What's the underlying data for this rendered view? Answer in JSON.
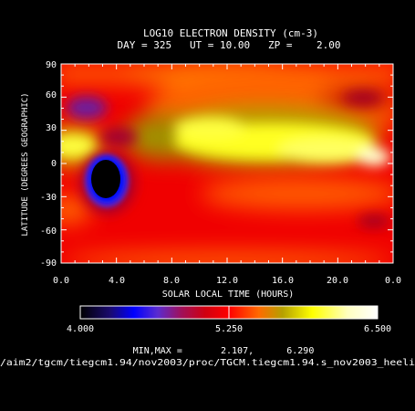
{
  "chart_data": {
    "type": "heatmap",
    "title": "LOG10 ELECTRON DENSITY (cm-3)",
    "subtitle": "DAY = 325   UT = 10.00   ZP =    2.00",
    "xlabel": "SOLAR LOCAL TIME (HOURS)",
    "ylabel": "LATITUDE (DEGREES GEOGRAPHIC)",
    "x_ticks": [
      "0.0",
      "4.0",
      "8.0",
      "12.0",
      "16.0",
      "20.0",
      "0.0"
    ],
    "y_ticks": [
      "90",
      "60",
      "30",
      "0",
      "-30",
      "-60",
      "-90"
    ],
    "xlim": [
      0,
      24
    ],
    "ylim": [
      -90,
      90
    ],
    "colorbar": {
      "min_label": "4.000",
      "mid_label": "5.250",
      "max_label": "6.500",
      "min": 4.0,
      "max": 6.5
    },
    "minmax_text": "MIN,MAX =       2.107,      6.290",
    "path_text": "/aim2/tgcm/tiegcm1.94/nov2003/proc/TGCM.tiegcm1.94.s_nov2003_heeli",
    "field_summary": {
      "min": 2.107,
      "max": 6.29,
      "features": [
        {
          "description": "depletion minimum",
          "slt": 3.2,
          "lat": 0,
          "value": 2.1
        },
        {
          "description": "enhanced equatorial band",
          "slt_range": [
            9,
            23
          ],
          "lat_range": [
            -10,
            30
          ]
        }
      ]
    },
    "colors": {
      "background": "#000000",
      "text": "#ffffff",
      "colormap": [
        "#000000",
        "#1a0a6e",
        "#0000ff",
        "#5a2bd0",
        "#b0124a",
        "#ff0000",
        "#ff6a00",
        "#b5a000",
        "#ffff00",
        "#ffffd0",
        "#ffffff"
      ]
    }
  }
}
